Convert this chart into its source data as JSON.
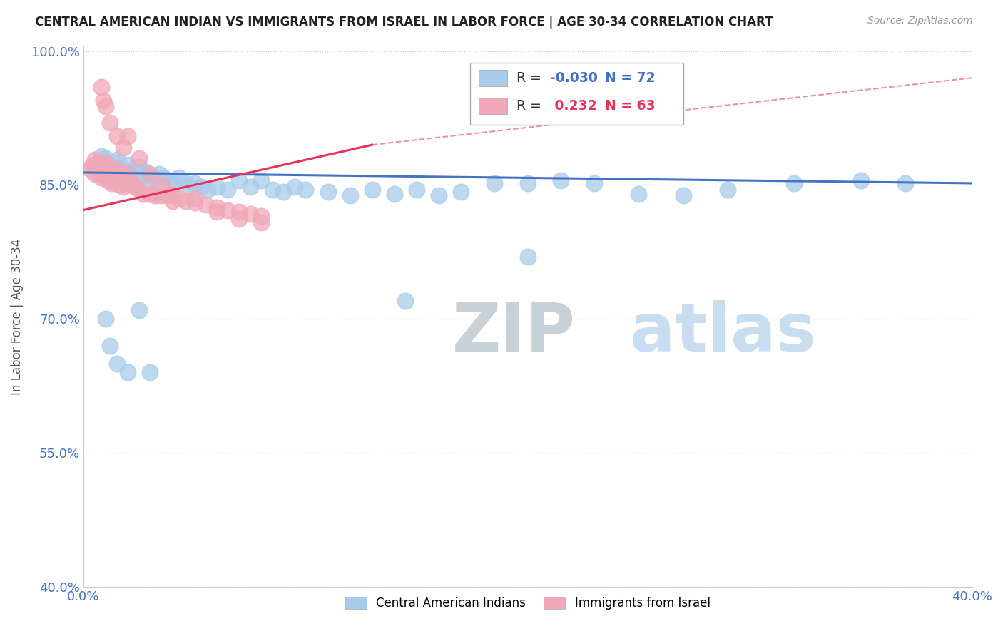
{
  "title": "CENTRAL AMERICAN INDIAN VS IMMIGRANTS FROM ISRAEL IN LABOR FORCE | AGE 30-34 CORRELATION CHART",
  "source": "Source: ZipAtlas.com",
  "ylabel": "In Labor Force | Age 30-34",
  "xlim": [
    0.0,
    0.4
  ],
  "ylim": [
    0.4,
    1.005
  ],
  "yticks": [
    0.4,
    0.55,
    0.7,
    0.85,
    1.0
  ],
  "ytick_labels": [
    "40.0%",
    "55.0%",
    "70.0%",
    "85.0%",
    "100.0%"
  ],
  "xticks": [
    0.0,
    0.4
  ],
  "xtick_labels": [
    "0.0%",
    "40.0%"
  ],
  "legend_blue_r": "-0.030",
  "legend_blue_n": "72",
  "legend_pink_r": "0.232",
  "legend_pink_n": "63",
  "blue_color": "#A8CCEA",
  "pink_color": "#F0A8B8",
  "blue_line_color": "#4472C4",
  "pink_line_color": "#E8325A",
  "watermark_zip": "ZIP",
  "watermark_atlas": "atlas",
  "blue_trend": [
    0.0,
    0.864,
    0.4,
    0.852
  ],
  "pink_trend_solid": [
    0.0,
    0.822,
    0.13,
    0.895
  ],
  "pink_trend_dash": [
    0.13,
    0.895,
    0.4,
    0.97
  ],
  "blue_x": [
    0.005,
    0.007,
    0.008,
    0.009,
    0.01,
    0.01,
    0.011,
    0.012,
    0.013,
    0.014,
    0.015,
    0.015,
    0.016,
    0.017,
    0.018,
    0.019,
    0.02,
    0.021,
    0.022,
    0.023,
    0.024,
    0.025,
    0.026,
    0.027,
    0.028,
    0.03,
    0.031,
    0.032,
    0.034,
    0.036,
    0.038,
    0.04,
    0.043,
    0.045,
    0.048,
    0.05,
    0.053,
    0.056,
    0.06,
    0.065,
    0.07,
    0.075,
    0.08,
    0.085,
    0.09,
    0.095,
    0.1,
    0.11,
    0.12,
    0.13,
    0.14,
    0.15,
    0.16,
    0.17,
    0.185,
    0.2,
    0.215,
    0.23,
    0.25,
    0.27,
    0.29,
    0.32,
    0.35,
    0.37,
    0.2,
    0.145,
    0.01,
    0.012,
    0.015,
    0.02,
    0.025,
    0.03
  ],
  "blue_y": [
    0.87,
    0.875,
    0.882,
    0.878,
    0.88,
    0.865,
    0.87,
    0.872,
    0.868,
    0.875,
    0.878,
    0.862,
    0.87,
    0.865,
    0.868,
    0.86,
    0.873,
    0.865,
    0.862,
    0.868,
    0.865,
    0.87,
    0.862,
    0.858,
    0.865,
    0.86,
    0.858,
    0.855,
    0.862,
    0.858,
    0.855,
    0.852,
    0.858,
    0.855,
    0.848,
    0.852,
    0.848,
    0.845,
    0.848,
    0.845,
    0.855,
    0.848,
    0.855,
    0.845,
    0.842,
    0.848,
    0.845,
    0.842,
    0.838,
    0.845,
    0.84,
    0.845,
    0.838,
    0.842,
    0.852,
    0.852,
    0.855,
    0.852,
    0.84,
    0.838,
    0.845,
    0.852,
    0.855,
    0.852,
    0.77,
    0.72,
    0.7,
    0.67,
    0.65,
    0.64,
    0.71,
    0.64
  ],
  "pink_x": [
    0.003,
    0.004,
    0.005,
    0.005,
    0.006,
    0.007,
    0.007,
    0.008,
    0.008,
    0.009,
    0.009,
    0.01,
    0.01,
    0.011,
    0.011,
    0.012,
    0.012,
    0.013,
    0.013,
    0.014,
    0.015,
    0.015,
    0.016,
    0.016,
    0.017,
    0.018,
    0.018,
    0.019,
    0.02,
    0.021,
    0.022,
    0.023,
    0.025,
    0.027,
    0.03,
    0.032,
    0.035,
    0.038,
    0.04,
    0.043,
    0.046,
    0.05,
    0.055,
    0.06,
    0.065,
    0.07,
    0.075,
    0.08,
    0.008,
    0.009,
    0.01,
    0.012,
    0.015,
    0.018,
    0.02,
    0.025,
    0.03,
    0.035,
    0.04,
    0.05,
    0.06,
    0.07,
    0.08
  ],
  "pink_y": [
    0.868,
    0.872,
    0.878,
    0.862,
    0.87,
    0.875,
    0.862,
    0.872,
    0.858,
    0.87,
    0.862,
    0.875,
    0.86,
    0.868,
    0.855,
    0.865,
    0.858,
    0.862,
    0.852,
    0.858,
    0.868,
    0.855,
    0.862,
    0.85,
    0.858,
    0.855,
    0.848,
    0.852,
    0.862,
    0.855,
    0.85,
    0.848,
    0.845,
    0.84,
    0.84,
    0.838,
    0.838,
    0.838,
    0.832,
    0.835,
    0.832,
    0.83,
    0.828,
    0.825,
    0.822,
    0.82,
    0.818,
    0.815,
    0.96,
    0.945,
    0.938,
    0.92,
    0.905,
    0.892,
    0.905,
    0.88,
    0.862,
    0.85,
    0.84,
    0.835,
    0.82,
    0.812,
    0.808
  ]
}
